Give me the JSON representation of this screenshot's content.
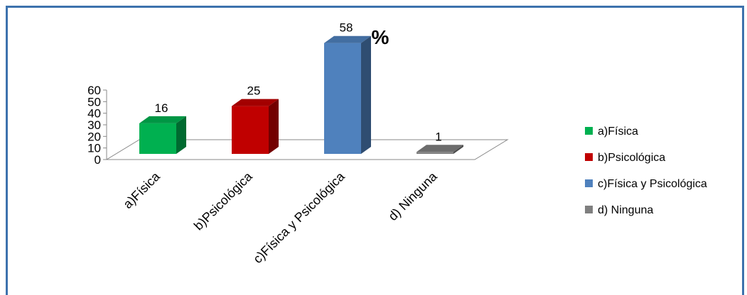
{
  "chart_data": {
    "type": "bar",
    "title": "%",
    "categories": [
      "a)Física",
      "b)Psicológica",
      "c)Física y Psicológica",
      "d) Ninguna"
    ],
    "values": [
      16,
      25,
      58,
      1
    ],
    "ylim": [
      0,
      60
    ],
    "yticks": [
      "0",
      "10",
      "20",
      "30",
      "40",
      "50",
      "60"
    ],
    "colors": [
      "#00b050",
      "#c00000",
      "#4f81bd",
      "#7f7f7f"
    ],
    "legend_position": "right",
    "legend": [
      "a)Física",
      "b)Psicológica",
      "c)Física y Psicológica",
      "d) Ninguna"
    ]
  }
}
